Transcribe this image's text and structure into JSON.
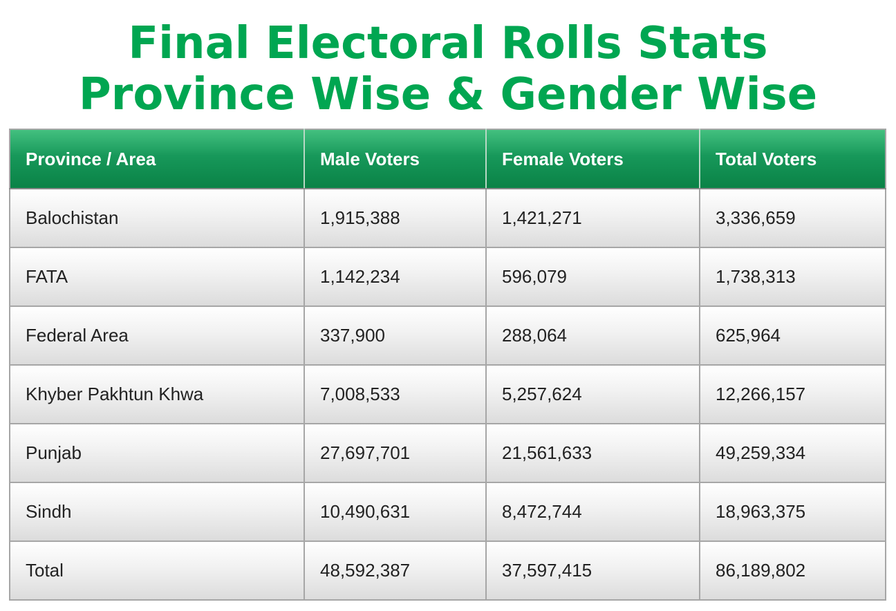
{
  "title": {
    "line1": "Final Electoral Rolls Stats",
    "line2": "Province Wise & Gender Wise"
  },
  "table": {
    "headers": [
      "Province / Area",
      "Male Voters",
      "Female Voters",
      "Total Voters"
    ],
    "rows": [
      [
        "Balochistan",
        "1,915,388",
        "1,421,271",
        "3,336,659"
      ],
      [
        "FATA",
        "1,142,234",
        "596,079",
        "1,738,313"
      ],
      [
        "Federal Area",
        "337,900",
        "288,064",
        "625,964"
      ],
      [
        "Khyber Pakhtun Khwa",
        "7,008,533",
        "5,257,624",
        "12,266,157"
      ],
      [
        "Punjab",
        "27,697,701",
        "21,561,633",
        "49,259,334"
      ],
      [
        "Sindh",
        "10,490,631",
        "8,472,744",
        "18,963,375"
      ],
      [
        "Total",
        "48,592,387",
        "37,597,415",
        "86,189,802"
      ]
    ]
  },
  "colors": {
    "title": "#00a651",
    "header_top": "#43c07f",
    "header_bottom": "#0a8246",
    "border": "#a6a6a6"
  }
}
